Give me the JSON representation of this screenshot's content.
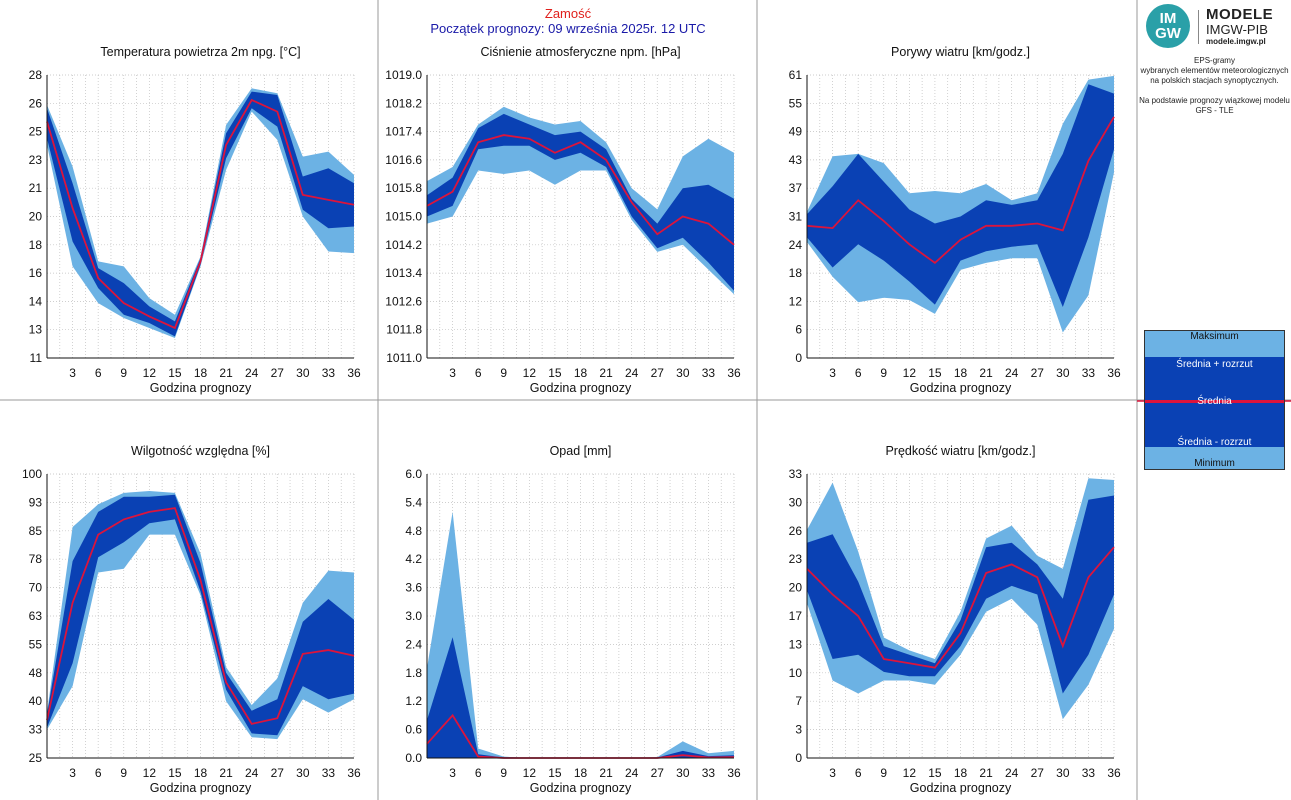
{
  "header": {
    "station": "Zamość",
    "forecast_start": "Początek prognozy: 09 września 2025r. 12 UTC"
  },
  "logo": {
    "mark_top": "IM",
    "mark_bottom": "GW",
    "title": "MODELE",
    "subtitle": "IMGW-PIB",
    "site": "modele.imgw.pl"
  },
  "description": {
    "line1": "EPS-gramy",
    "line2": "wybranych elementów meteorologicznych",
    "line3": "na polskich stacjach  synoptycznych.",
    "line4": "Na podstawie prognozy wiązkowej modelu",
    "line5": "GFS - TLE"
  },
  "legend": {
    "max": "Maksimum",
    "mean_plus": "Średnia + rozrzut",
    "mean": "Średnia",
    "mean_minus": "Średnia - rozrzut",
    "min": "Minimum"
  },
  "colors": {
    "range": "#6cb2e4",
    "spread": "#0a41b4",
    "mean": "#dc143c",
    "grid": "#bfbfbf"
  },
  "chart_data": [
    {
      "id": "temp",
      "type": "area",
      "title": "Temperatura powietrza 2m npg. [°C]",
      "xlabel": "Godzina prognozy",
      "ylabel": "",
      "x": [
        0,
        3,
        6,
        9,
        12,
        15,
        18,
        21,
        24,
        27,
        30,
        33,
        36
      ],
      "xticks": [
        "3",
        "6",
        "9",
        "12",
        "15",
        "18",
        "21",
        "24",
        "27",
        "30",
        "33",
        "36"
      ],
      "ylim": [
        11,
        28
      ],
      "yticks": [
        "11",
        "13",
        "14",
        "16",
        "18",
        "20",
        "21",
        "23",
        "25",
        "26",
        "28"
      ],
      "grid": true,
      "series": [
        {
          "name": "Maksimum",
          "values": [
            26.2,
            22.5,
            16.8,
            16.5,
            14.6,
            13.6,
            17.1,
            25.0,
            27.2,
            26.9,
            23.1,
            23.4,
            22.0
          ]
        },
        {
          "name": "Średnia + rozrzut",
          "values": [
            26.0,
            21.5,
            16.4,
            15.5,
            14.1,
            13.2,
            17.0,
            24.5,
            27.0,
            26.8,
            21.9,
            22.4,
            21.5
          ]
        },
        {
          "name": "Średnia",
          "values": [
            25.2,
            20.0,
            15.8,
            14.3,
            13.5,
            12.8,
            16.8,
            23.8,
            26.5,
            25.8,
            20.8,
            20.5,
            20.2
          ]
        },
        {
          "name": "Średnia - rozrzut",
          "values": [
            24.2,
            18.0,
            15.2,
            13.6,
            13.1,
            12.3,
            16.6,
            23.0,
            26.0,
            24.9,
            19.9,
            18.8,
            18.9
          ]
        },
        {
          "name": "Minimum",
          "values": [
            23.8,
            16.5,
            14.3,
            13.4,
            12.8,
            12.2,
            16.5,
            22.3,
            25.8,
            24.1,
            19.5,
            17.4,
            17.3
          ]
        }
      ]
    },
    {
      "id": "pressure",
      "type": "area",
      "title": "Ciśnienie atmosferyczne npm. [hPa]",
      "xlabel": "Godzina prognozy",
      "ylabel": "",
      "x": [
        0,
        3,
        6,
        9,
        12,
        15,
        18,
        21,
        24,
        27,
        30,
        33,
        36
      ],
      "xticks": [
        "3",
        "6",
        "9",
        "12",
        "15",
        "18",
        "21",
        "24",
        "27",
        "30",
        "33",
        "36"
      ],
      "ylim": [
        1011.0,
        1019.0
      ],
      "yticks": [
        "1011.0",
        "1011.8",
        "1012.6",
        "1013.4",
        "1014.2",
        "1015.0",
        "1015.8",
        "1016.6",
        "1017.4",
        "1018.2",
        "1019.0"
      ],
      "grid": true,
      "series": [
        {
          "name": "Maksimum",
          "values": [
            1016.0,
            1016.4,
            1017.6,
            1018.1,
            1017.8,
            1017.6,
            1017.7,
            1017.1,
            1015.8,
            1015.2,
            1016.7,
            1017.2,
            1016.8
          ]
        },
        {
          "name": "Średnia + rozrzut",
          "values": [
            1015.6,
            1016.1,
            1017.5,
            1017.9,
            1017.6,
            1017.3,
            1017.4,
            1016.9,
            1015.5,
            1014.8,
            1015.8,
            1015.9,
            1015.5
          ]
        },
        {
          "name": "Średnia",
          "values": [
            1015.3,
            1015.7,
            1017.1,
            1017.3,
            1017.2,
            1016.8,
            1017.1,
            1016.6,
            1015.4,
            1014.5,
            1015.0,
            1014.8,
            1014.2
          ]
        },
        {
          "name": "Średnia - rozrzut",
          "values": [
            1015.0,
            1015.3,
            1016.9,
            1017.0,
            1017.0,
            1016.6,
            1016.8,
            1016.4,
            1015.0,
            1014.1,
            1014.4,
            1013.7,
            1012.9
          ]
        },
        {
          "name": "Minimum",
          "values": [
            1014.8,
            1015.0,
            1016.3,
            1016.2,
            1016.3,
            1015.9,
            1016.3,
            1016.3,
            1014.9,
            1014.0,
            1014.2,
            1013.5,
            1012.8
          ]
        }
      ]
    },
    {
      "id": "gusts",
      "type": "area",
      "title": "Porywy wiatru [km/godz.]",
      "xlabel": "Godzina prognozy",
      "ylabel": "",
      "x": [
        0,
        3,
        6,
        9,
        12,
        15,
        18,
        21,
        24,
        27,
        30,
        33,
        36
      ],
      "xticks": [
        "3",
        "6",
        "9",
        "12",
        "15",
        "18",
        "21",
        "24",
        "27",
        "30",
        "33",
        "36"
      ],
      "ylim": [
        0,
        61
      ],
      "yticks": [
        "0",
        "6",
        "12",
        "18",
        "24",
        "31",
        "37",
        "43",
        "49",
        "55",
        "61"
      ],
      "grid": true,
      "series": [
        {
          "name": "Maksimum",
          "values": [
            31.5,
            43.5,
            44.0,
            42.0,
            35.5,
            36.0,
            35.5,
            37.5,
            34.0,
            35.5,
            50.5,
            60.0,
            60.8
          ]
        },
        {
          "name": "Średnia + rozrzut",
          "values": [
            31.0,
            37.0,
            44.0,
            38.0,
            32.0,
            29.0,
            30.5,
            34.0,
            33.0,
            34.0,
            44.0,
            59.0,
            57.0
          ]
        },
        {
          "name": "Średnia",
          "values": [
            28.5,
            28.0,
            34.0,
            29.5,
            24.5,
            20.5,
            25.5,
            28.5,
            28.5,
            29.0,
            27.5,
            42.5,
            52.0
          ]
        },
        {
          "name": "Średnia - rozrzut",
          "values": [
            26.0,
            19.5,
            24.5,
            21.0,
            16.5,
            11.5,
            21.0,
            23.0,
            24.0,
            24.5,
            11.0,
            26.0,
            45.0
          ]
        },
        {
          "name": "Minimum",
          "values": [
            25.0,
            17.5,
            12.0,
            13.0,
            12.5,
            9.5,
            19.0,
            20.5,
            21.5,
            21.5,
            5.5,
            13.5,
            40.0
          ]
        }
      ]
    },
    {
      "id": "humidity",
      "type": "area",
      "title": "Wilgotność względna [%]",
      "xlabel": "Godzina prognozy",
      "ylabel": "",
      "x": [
        0,
        3,
        6,
        9,
        12,
        15,
        18,
        21,
        24,
        27,
        30,
        33,
        36
      ],
      "xticks": [
        "3",
        "6",
        "9",
        "12",
        "15",
        "18",
        "21",
        "24",
        "27",
        "30",
        "33",
        "36"
      ],
      "ylim": [
        25,
        100
      ],
      "yticks": [
        "25",
        "33",
        "40",
        "48",
        "55",
        "63",
        "70",
        "78",
        "85",
        "93",
        "100"
      ],
      "grid": true,
      "series": [
        {
          "name": "Maksimum",
          "values": [
            37.0,
            86.0,
            92.0,
            95.0,
            95.5,
            95.0,
            79.0,
            49.0,
            39.0,
            46.0,
            66.0,
            74.5,
            74.0
          ]
        },
        {
          "name": "Średnia + rozrzut",
          "values": [
            36.5,
            77.0,
            90.0,
            94.0,
            94.0,
            94.5,
            76.5,
            47.5,
            37.5,
            40.5,
            61.0,
            67.0,
            61.5
          ]
        },
        {
          "name": "Średnia",
          "values": [
            35.0,
            66.0,
            84.0,
            88.0,
            90.0,
            91.0,
            72.0,
            45.0,
            34.0,
            35.5,
            52.5,
            53.5,
            52.0
          ]
        },
        {
          "name": "Średnia - rozrzut",
          "values": [
            33.0,
            50.0,
            78.0,
            82.0,
            87.0,
            88.0,
            69.0,
            43.0,
            31.5,
            31.0,
            44.0,
            40.5,
            42.0
          ]
        },
        {
          "name": "Minimum",
          "values": [
            32.5,
            44.0,
            74.0,
            75.0,
            84.0,
            84.0,
            68.0,
            40.0,
            30.5,
            30.0,
            40.5,
            37.0,
            40.5
          ]
        }
      ]
    },
    {
      "id": "precip",
      "type": "area",
      "title": "Opad [mm]",
      "xlabel": "Godzina prognozy",
      "ylabel": "",
      "x": [
        0,
        3,
        6,
        9,
        12,
        15,
        18,
        21,
        24,
        27,
        30,
        33,
        36
      ],
      "xticks": [
        "3",
        "6",
        "9",
        "12",
        "15",
        "18",
        "21",
        "24",
        "27",
        "30",
        "33",
        "36"
      ],
      "ylim": [
        0.0,
        6.0
      ],
      "yticks": [
        "0.0",
        "0.6",
        "1.2",
        "1.8",
        "2.4",
        "3.0",
        "3.6",
        "4.2",
        "4.8",
        "5.4",
        "6.0"
      ],
      "grid": true,
      "series": [
        {
          "name": "Maksimum",
          "values": [
            1.9,
            5.2,
            0.2,
            0.03,
            0.0,
            0.0,
            0.0,
            0.0,
            0.0,
            0.02,
            0.35,
            0.1,
            0.15
          ]
        },
        {
          "name": "Średnia + rozrzut",
          "values": [
            0.8,
            2.55,
            0.08,
            0.01,
            0.0,
            0.0,
            0.0,
            0.0,
            0.0,
            0.01,
            0.15,
            0.04,
            0.06
          ]
        },
        {
          "name": "Średnia",
          "values": [
            0.3,
            0.9,
            0.03,
            0.0,
            0.0,
            0.0,
            0.0,
            0.0,
            0.0,
            0.0,
            0.06,
            0.01,
            0.02
          ]
        },
        {
          "name": "Średnia - rozrzut",
          "values": [
            0.0,
            0.0,
            0.0,
            0.0,
            0.0,
            0.0,
            0.0,
            0.0,
            0.0,
            0.0,
            0.0,
            0.0,
            0.0
          ]
        },
        {
          "name": "Minimum",
          "values": [
            0.0,
            0.0,
            0.0,
            0.0,
            0.0,
            0.0,
            0.0,
            0.0,
            0.0,
            0.0,
            0.0,
            0.0,
            0.0
          ]
        }
      ]
    },
    {
      "id": "wind",
      "type": "area",
      "title": "Prędkość wiatru [km/godz.]",
      "xlabel": "Godzina prognozy",
      "ylabel": "",
      "x": [
        0,
        3,
        6,
        9,
        12,
        15,
        18,
        21,
        24,
        27,
        30,
        33,
        36
      ],
      "xticks": [
        "3",
        "6",
        "9",
        "12",
        "15",
        "18",
        "21",
        "24",
        "27",
        "30",
        "33",
        "36"
      ],
      "ylim": [
        0,
        33
      ],
      "yticks": [
        "0",
        "3",
        "7",
        "10",
        "13",
        "17",
        "20",
        "23",
        "26",
        "30",
        "33"
      ],
      "grid": true,
      "series": [
        {
          "name": "Maksimum",
          "values": [
            26.5,
            32.0,
            24.0,
            14.0,
            12.5,
            11.5,
            17.0,
            25.5,
            27.0,
            23.5,
            22.0,
            32.5,
            32.3
          ]
        },
        {
          "name": "Średnia + rozrzut",
          "values": [
            25.0,
            26.0,
            20.5,
            13.0,
            12.0,
            11.0,
            16.0,
            24.5,
            25.0,
            22.5,
            18.5,
            30.0,
            30.5
          ]
        },
        {
          "name": "Średnia",
          "values": [
            22.0,
            19.0,
            16.5,
            11.5,
            11.0,
            10.5,
            14.5,
            21.5,
            22.5,
            21.0,
            13.0,
            21.0,
            24.5
          ]
        },
        {
          "name": "Średnia - rozrzut",
          "values": [
            19.5,
            11.5,
            12.0,
            10.0,
            9.5,
            9.5,
            13.0,
            18.5,
            20.0,
            19.0,
            7.5,
            12.0,
            19.0
          ]
        },
        {
          "name": "Minimum",
          "values": [
            18.0,
            9.0,
            7.5,
            9.0,
            9.0,
            8.5,
            12.0,
            17.0,
            18.5,
            15.5,
            4.5,
            8.5,
            15.0
          ]
        }
      ]
    }
  ]
}
